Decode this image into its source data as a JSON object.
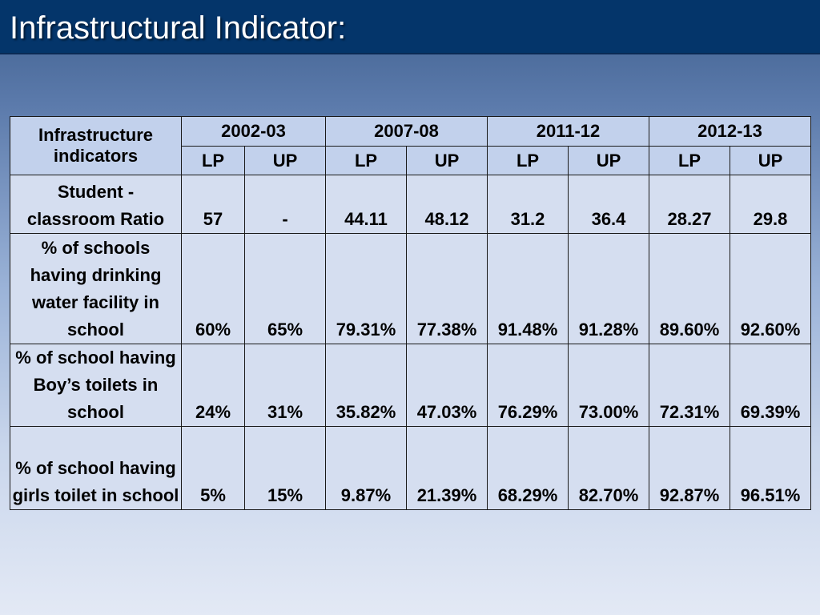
{
  "title": "Infrastructural Indicator:",
  "table": {
    "corner_header": "Infrastructure indicators",
    "years": [
      "2002-03",
      "2007-08",
      "2011-12",
      "2012-13"
    ],
    "subheaders": [
      "LP",
      "UP",
      "LP",
      "UP",
      "LP",
      "UP",
      "LP",
      "UP"
    ],
    "rows": [
      {
        "label": "Student - classroom Ratio",
        "values": [
          "57",
          "-",
          "44.11",
          "48.12",
          "31.2",
          "36.4",
          "28.27",
          "29.8"
        ]
      },
      {
        "label": "% of schools having drinking water facility in school",
        "values": [
          "60%",
          "65%",
          "79.31%",
          "77.38%",
          "91.48%",
          "91.28%",
          "89.60%",
          "92.60%"
        ]
      },
      {
        "label": "% of school having Boy’s toilets in school",
        "values": [
          "24%",
          "31%",
          "35.82%",
          "47.03%",
          "76.29%",
          "73.00%",
          "72.31%",
          "69.39%"
        ]
      },
      {
        "label": "% of school having girls toilet in school",
        "values": [
          "5%",
          "15%",
          "9.87%",
          "21.39%",
          "68.29%",
          "82.70%",
          "92.87%",
          "96.51%"
        ]
      }
    ]
  }
}
